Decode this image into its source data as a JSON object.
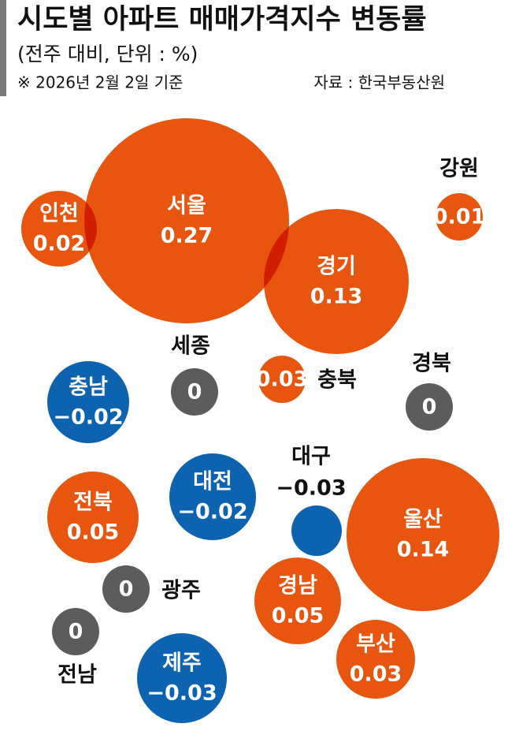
{
  "chart_data": {
    "type": "bubble",
    "title": "시도별 아파트 매매가격지수 변동률",
    "subtitle": "(전주 대비, 단위 : %)",
    "note": "※ 2026년 2월 2일 기준",
    "source": "자료 : 한국부동산원",
    "categories": [
      "서울",
      "인천",
      "경기",
      "강원",
      "세종",
      "충북",
      "경북",
      "충남",
      "대전",
      "대구",
      "울산",
      "전북",
      "광주",
      "경남",
      "전남",
      "부산",
      "제주"
    ],
    "values": [
      0.27,
      0.02,
      0.13,
      0.01,
      0,
      0.03,
      0,
      -0.02,
      -0.02,
      -0.03,
      0.14,
      0.05,
      0,
      0.05,
      0,
      0.03,
      -0.03
    ],
    "value_labels": [
      "0.27",
      "0.02",
      "0.13",
      "0.01",
      "0",
      "0.03",
      "0",
      "−0.02",
      "−0.02",
      "−0.03",
      "0.14",
      "0.05",
      "0",
      "0.05",
      "0",
      "0.03",
      "−0.03"
    ],
    "colors": {
      "positive": "#e8550f",
      "negative": "#0d63b0",
      "zero": "#5c5c5c"
    }
  }
}
